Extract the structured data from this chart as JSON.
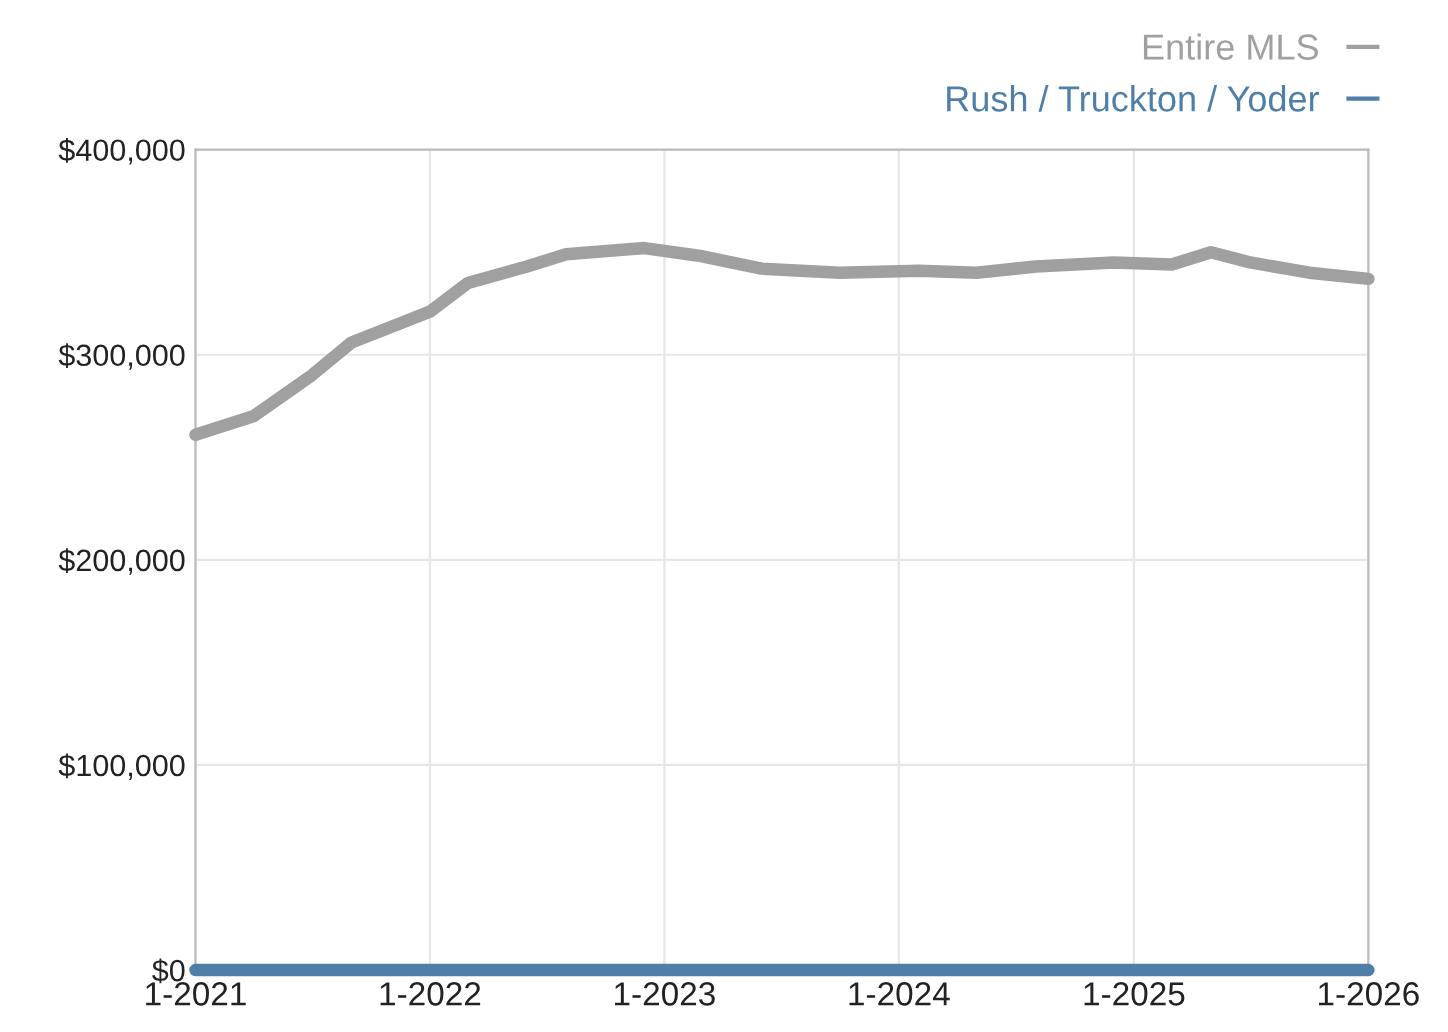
{
  "chart_data": {
    "type": "line",
    "xlim": [
      "2021-01",
      "2026-01"
    ],
    "xticks": [
      {
        "value": "2021-01",
        "label": "1-2021"
      },
      {
        "value": "2022-01",
        "label": "1-2022"
      },
      {
        "value": "2023-01",
        "label": "1-2023"
      },
      {
        "value": "2024-01",
        "label": "1-2024"
      },
      {
        "value": "2025-01",
        "label": "1-2025"
      },
      {
        "value": "2026-01",
        "label": "1-2026"
      }
    ],
    "ylim": [
      0,
      400000
    ],
    "yticks": [
      {
        "value": 0,
        "label": "$0"
      },
      {
        "value": 100000,
        "label": "$100,000"
      },
      {
        "value": 200000,
        "label": "$200,000"
      },
      {
        "value": 300000,
        "label": "$300,000"
      },
      {
        "value": 400000,
        "label": "$400,000"
      }
    ],
    "grid": true,
    "legend": "top right",
    "marker": "none",
    "line_style": "solid",
    "series": [
      {
        "name": "Entire MLS",
        "color": "#a0a0a0",
        "x": [
          "2021-01",
          "2021-04",
          "2021-07",
          "2021-09",
          "2022-01",
          "2022-03",
          "2022-06",
          "2022-08",
          "2022-12",
          "2023-03",
          "2023-06",
          "2023-10",
          "2024-02",
          "2024-05",
          "2024-08",
          "2024-12",
          "2025-03",
          "2025-05",
          "2025-07",
          "2025-10",
          "2026-01"
        ],
        "values": [
          261000,
          270000,
          290000,
          306000,
          321000,
          335000,
          343000,
          349000,
          352000,
          348000,
          342000,
          340000,
          341000,
          340000,
          343000,
          345000,
          344000,
          350000,
          345000,
          340000,
          337000
        ]
      },
      {
        "name": "Rush / Truckton / Yoder",
        "color": "#4f7fa8",
        "x": [
          "2021-01",
          "2026-01"
        ],
        "values": [
          0,
          0
        ]
      }
    ]
  }
}
